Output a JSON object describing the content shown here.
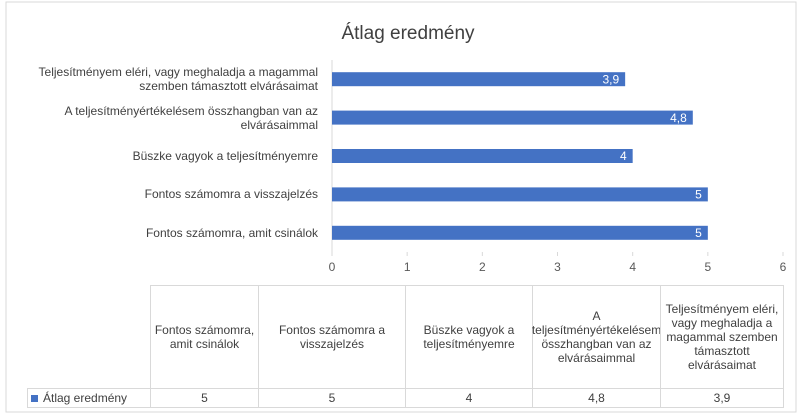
{
  "chart_data": {
    "type": "barh",
    "title": "Átlag eredmény",
    "categories": [
      "Fontos számomra, amit csinálok",
      "Fontos számomra a visszajelzés",
      "Büszke vagyok a teljesítményemre",
      "A teljesítményértékelésem összhangban van az elvárásaimmal",
      "Teljesítményem eléri, vagy meghaladja a magammal szemben támasztott elvárásaimat"
    ],
    "series": [
      {
        "name": "Átlag eredmény",
        "color": "#4472c4",
        "values": [
          5,
          5,
          4,
          4.8,
          3.9
        ],
        "value_labels": [
          "5",
          "5",
          "4",
          "4,8",
          "3,9"
        ]
      }
    ],
    "xlim": [
      0,
      6
    ],
    "xticks": [
      0,
      1,
      2,
      3,
      4,
      5,
      6
    ],
    "grid": false,
    "data_table": true
  }
}
